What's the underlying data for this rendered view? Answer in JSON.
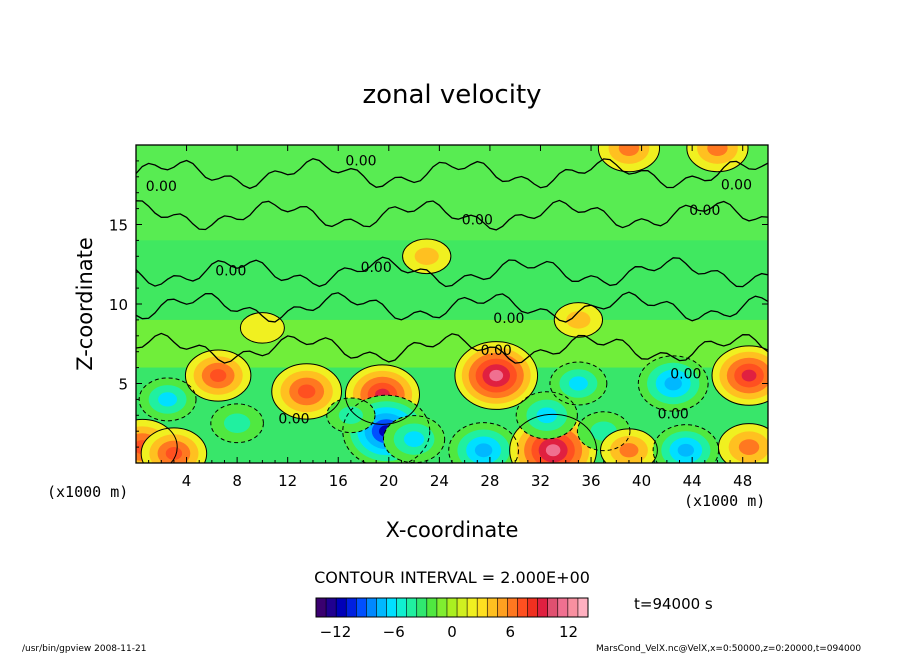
{
  "chart_data": {
    "type": "heatmap",
    "title": "zonal velocity",
    "xlabel": "X-coordinate",
    "ylabel": "Z-coordinate",
    "x_unit_left": "(x1000 m)",
    "x_unit_right": "(x1000 m)",
    "xlim": [
      0,
      50
    ],
    "ylim": [
      0,
      20
    ],
    "x_ticks": [
      4,
      8,
      12,
      16,
      20,
      24,
      28,
      32,
      36,
      40,
      44,
      48
    ],
    "y_ticks": [
      5,
      10,
      15
    ],
    "contour_labels": [
      "0.00",
      "0.00",
      "0.00",
      "0.00",
      "0.00",
      "0.00",
      "0.00",
      "0.00",
      "0.00",
      "0.00",
      "0.00",
      "0.00"
    ],
    "contour_interval_label": "CONTOUR INTERVAL = 2.000E+00",
    "colorbar": {
      "min": -14,
      "max": 14,
      "ticks": [
        -12,
        -6,
        0,
        6,
        12
      ],
      "colors": [
        "#3a0070",
        "#200090",
        "#0000b8",
        "#0020e0",
        "#0050ff",
        "#0088ff",
        "#00b8ff",
        "#00e0ff",
        "#10f0d0",
        "#20f0a0",
        "#30e870",
        "#50e840",
        "#80ee30",
        "#aaf020",
        "#d0f020",
        "#f0f020",
        "#ffe020",
        "#ffc020",
        "#ffa020",
        "#ff7820",
        "#ff5020",
        "#f03020",
        "#e02040",
        "#e05070",
        "#f07090",
        "#f890a0",
        "#ffb0c0"
      ]
    },
    "features": [
      {
        "x": 0.5,
        "z": 1.0,
        "u": 8
      },
      {
        "x": 3.0,
        "z": 0.6,
        "u": 7
      },
      {
        "x": 2.5,
        "z": 4.0,
        "u": -5
      },
      {
        "x": 6.5,
        "z": 5.5,
        "u": 7
      },
      {
        "x": 8.0,
        "z": 2.5,
        "u": -4
      },
      {
        "x": 13.5,
        "z": 4.5,
        "u": 8
      },
      {
        "x": 19.5,
        "z": 4.3,
        "u": 9
      },
      {
        "x": 19.8,
        "z": 2.0,
        "u": -12
      },
      {
        "x": 17.0,
        "z": 3.0,
        "u": -3
      },
      {
        "x": 22.0,
        "z": 1.5,
        "u": -6
      },
      {
        "x": 28.5,
        "z": 5.5,
        "u": 11
      },
      {
        "x": 27.5,
        "z": 0.8,
        "u": -8
      },
      {
        "x": 33.0,
        "z": 0.8,
        "u": 12
      },
      {
        "x": 32.5,
        "z": 3.0,
        "u": -6
      },
      {
        "x": 35.0,
        "z": 5.0,
        "u": -5
      },
      {
        "x": 37.0,
        "z": 2.0,
        "u": -4
      },
      {
        "x": 39.0,
        "z": 0.8,
        "u": 5
      },
      {
        "x": 43.5,
        "z": 0.8,
        "u": -7
      },
      {
        "x": 42.5,
        "z": 5.0,
        "u": -8
      },
      {
        "x": 48.5,
        "z": 5.5,
        "u": 9
      },
      {
        "x": 48.5,
        "z": 1.0,
        "u": 6
      },
      {
        "x": 39.0,
        "z": 19.8,
        "u": 6
      },
      {
        "x": 46.0,
        "z": 19.8,
        "u": 6
      },
      {
        "x": 23.0,
        "z": 13.0,
        "u": 3
      },
      {
        "x": 35.0,
        "z": 9.0,
        "u": 3
      },
      {
        "x": 10.0,
        "z": 8.5,
        "u": 2
      }
    ],
    "time_label": "t=94000 s"
  },
  "footer": {
    "left": "/usr/bin/gpview   2008-11-21",
    "right": "MarsCond_VelX.nc@VelX,x=0:50000,z=0:20000,t=094000"
  }
}
